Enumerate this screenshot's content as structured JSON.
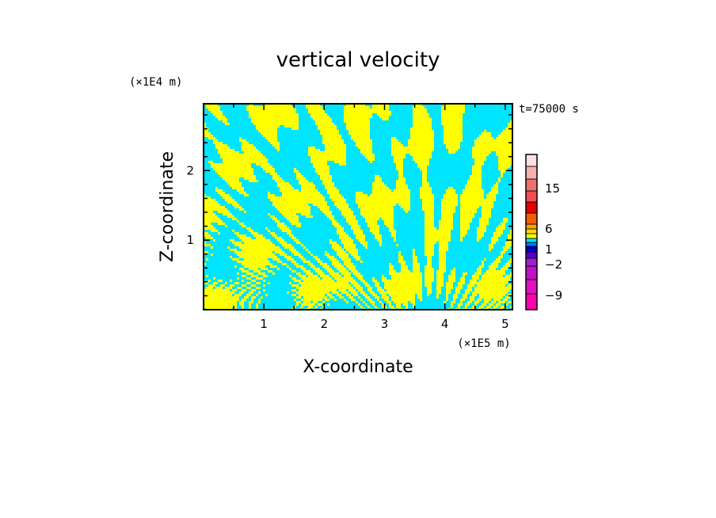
{
  "chart_data": {
    "type": "heatmap",
    "title": "vertical velocity",
    "xlabel": "X-coordinate",
    "ylabel": "Z-coordinate",
    "x_units": "(×1E5 m)",
    "y_units": "(×1E4 m)",
    "time_label": "t=75000 s",
    "xlim": [
      0,
      5.12
    ],
    "ylim": [
      0,
      2.96
    ],
    "x_ticks": [
      {
        "value": 1,
        "label": "1"
      },
      {
        "value": 2,
        "label": "2"
      },
      {
        "value": 3,
        "label": "3"
      },
      {
        "value": 4,
        "label": "4"
      },
      {
        "value": 5,
        "label": "5"
      }
    ],
    "y_ticks": [
      {
        "value": 1,
        "label": "1"
      },
      {
        "value": 2,
        "label": "2"
      }
    ],
    "field_colors": {
      "positive": "#ffff00",
      "negative": "#00e5ff"
    },
    "colorbar": {
      "levels": [
        {
          "color": "#ff00b0"
        },
        {
          "color": "#e010c0"
        },
        {
          "color": "#c010c8"
        },
        {
          "color": "#a020d0"
        },
        {
          "color": "#5000c8"
        },
        {
          "color": "#0000c8"
        },
        {
          "color": "#0078ff"
        },
        {
          "color": "#00e5ff"
        },
        {
          "color": "#ffff00"
        },
        {
          "color": "#ffd800"
        },
        {
          "color": "#ffa000"
        },
        {
          "color": "#f06000"
        },
        {
          "color": "#e80000"
        },
        {
          "color": "#f05050"
        },
        {
          "color": "#f07070"
        },
        {
          "color": "#f5b0b0"
        },
        {
          "color": "#fae0e0"
        }
      ],
      "tick_labels": [
        {
          "value": -9,
          "label": "−9"
        },
        {
          "value": -2,
          "label": "−2"
        },
        {
          "value": 1,
          "label": "1"
        },
        {
          "value": 6,
          "label": "6"
        },
        {
          "value": 15,
          "label": "15"
        }
      ]
    }
  }
}
